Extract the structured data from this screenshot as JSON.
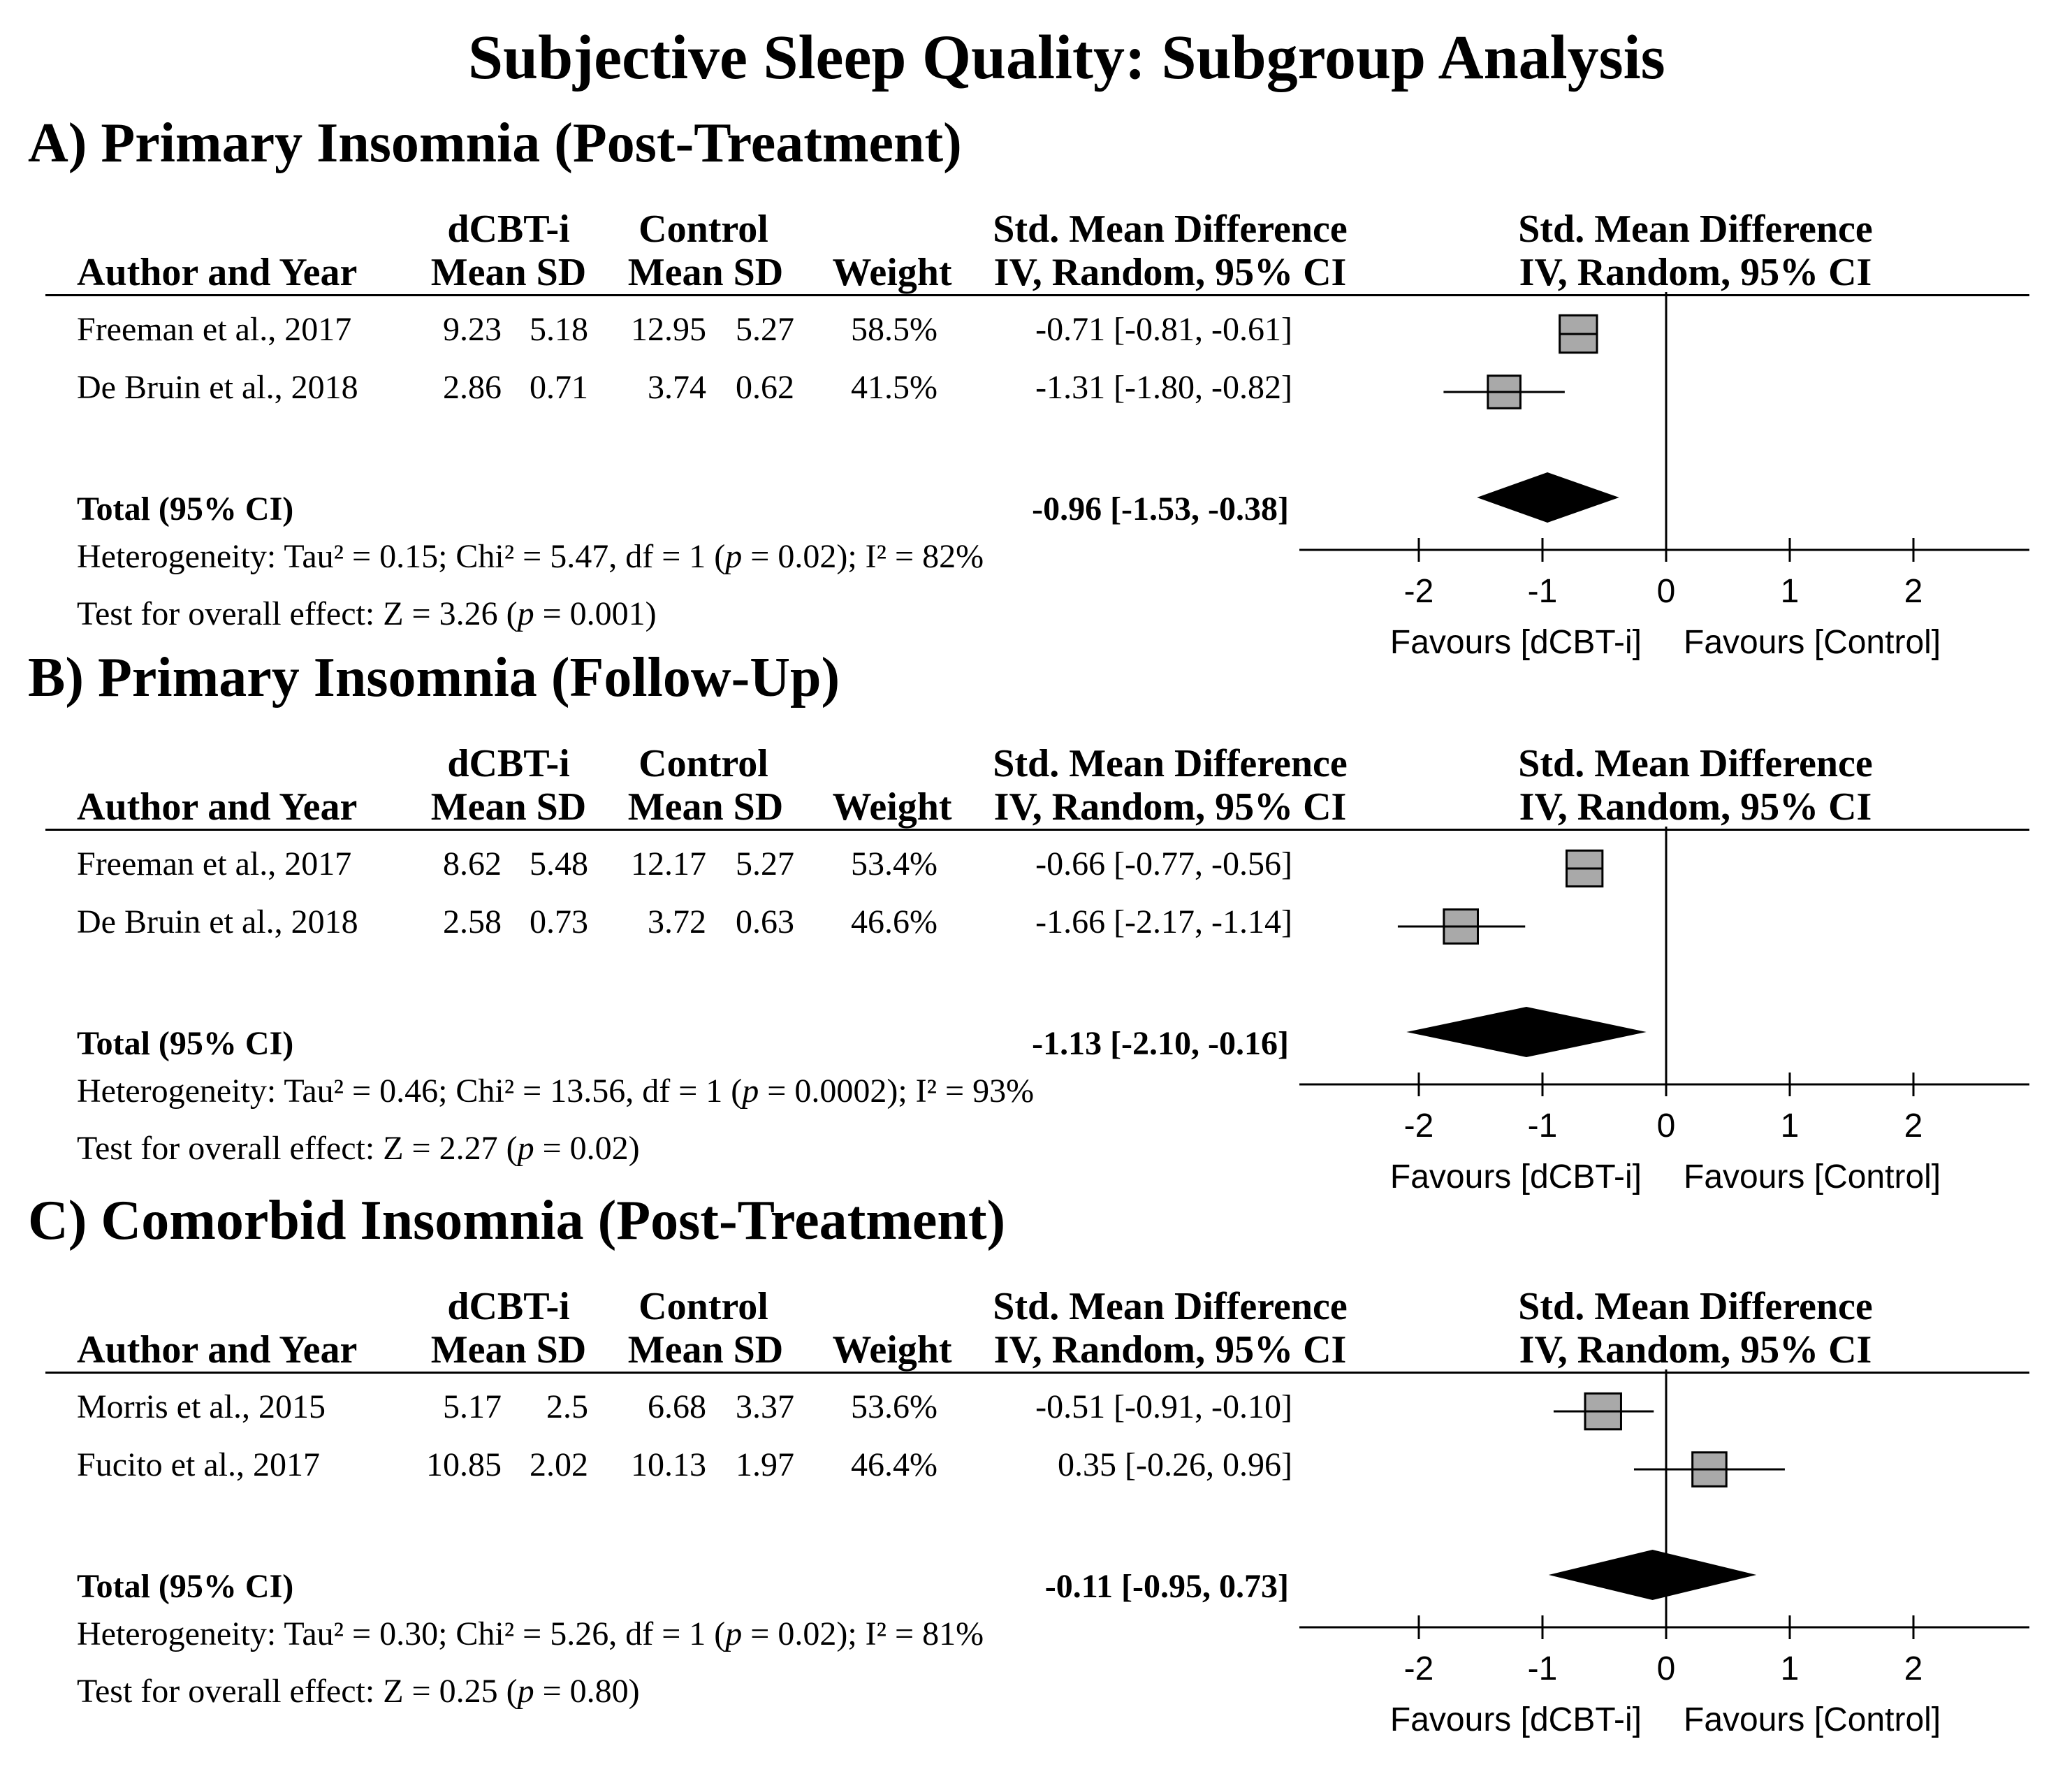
{
  "title": "Subjective Sleep Quality: Subgroup Analysis",
  "headers": {
    "author": "Author and Year",
    "dcbti": "dCBT-i",
    "control": "Control",
    "mean_sd": "Mean SD",
    "weight": "Weight",
    "smd": "Std. Mean Difference",
    "iv": "IV, Random, 95% CI"
  },
  "total_label": "Total (95% CI)",
  "favours_left": "Favours [dCBT-i]",
  "favours_right": "Favours [Control]",
  "ticks": [
    "-2",
    "-1",
    "0",
    "1",
    "2"
  ],
  "chart_data": [
    {
      "type": "forest",
      "title": "A) Primary Insomnia (Post-Treatment)",
      "xlim": [
        -2,
        2
      ],
      "studies": [
        {
          "author": "Freeman et al., 2017",
          "d_mean": "9.23",
          "d_sd": "5.18",
          "c_mean": "12.95",
          "c_sd": "5.27",
          "weight": "58.5%",
          "ci_text": "-0.71 [-0.81, -0.61]",
          "est": -0.71,
          "lo": -0.81,
          "hi": -0.61
        },
        {
          "author": "De Bruin et al., 2018",
          "d_mean": "2.86",
          "d_sd": "0.71",
          "c_mean": "3.74",
          "c_sd": "0.62",
          "weight": "41.5%",
          "ci_text": "-1.31 [-1.80, -0.82]",
          "est": -1.31,
          "lo": -1.8,
          "hi": -0.82
        }
      ],
      "total": {
        "ci_text": "-0.96 [-1.53, -0.38]",
        "est": -0.96,
        "lo": -1.53,
        "hi": -0.38
      },
      "heterogeneity": "Heterogeneity: Tau² = 0.15; Chi² = 5.47, df = 1 (p = 0.02); I² = 82%",
      "overall": "Test for overall effect: Z = 3.26 (p = 0.001)"
    },
    {
      "type": "forest",
      "title": "B) Primary Insomnia (Follow-Up)",
      "xlim": [
        -2,
        2
      ],
      "studies": [
        {
          "author": "Freeman et al., 2017",
          "d_mean": "8.62",
          "d_sd": "5.48",
          "c_mean": "12.17",
          "c_sd": "5.27",
          "weight": "53.4%",
          "ci_text": "-0.66 [-0.77, -0.56]",
          "est": -0.66,
          "lo": -0.77,
          "hi": -0.56
        },
        {
          "author": "De Bruin et al., 2018",
          "d_mean": "2.58",
          "d_sd": "0.73",
          "c_mean": "3.72",
          "c_sd": "0.63",
          "weight": "46.6%",
          "ci_text": "-1.66 [-2.17, -1.14]",
          "est": -1.66,
          "lo": -2.17,
          "hi": -1.14
        }
      ],
      "total": {
        "ci_text": "-1.13 [-2.10, -0.16]",
        "est": -1.13,
        "lo": -2.1,
        "hi": -0.16
      },
      "heterogeneity": "Heterogeneity: Tau² = 0.46; Chi² = 13.56, df = 1 (p = 0.0002); I² = 93%",
      "overall": "Test for overall effect: Z = 2.27 (p = 0.02)"
    },
    {
      "type": "forest",
      "title": "C) Comorbid Insomnia (Post-Treatment)",
      "xlim": [
        -2,
        2
      ],
      "studies": [
        {
          "author": "Morris et al., 2015",
          "d_mean": "5.17",
          "d_sd": "2.5",
          "c_mean": "6.68",
          "c_sd": "3.37",
          "weight": "53.6%",
          "ci_text": "-0.51 [-0.91, -0.10]",
          "est": -0.51,
          "lo": -0.91,
          "hi": -0.1
        },
        {
          "author": "Fucito et al., 2017",
          "d_mean": "10.85",
          "d_sd": "2.02",
          "c_mean": "10.13",
          "c_sd": "1.97",
          "weight": "46.4%",
          "ci_text": "0.35 [-0.26, 0.96]",
          "est": 0.35,
          "lo": -0.26,
          "hi": 0.96
        }
      ],
      "total": {
        "ci_text": "-0.11 [-0.95, 0.73]",
        "est": -0.11,
        "lo": -0.95,
        "hi": 0.73
      },
      "heterogeneity": "Heterogeneity: Tau² = 0.30; Chi² = 5.26, df = 1 (p = 0.02); I² = 81%",
      "overall": "Test for overall effect: Z = 0.25 (p = 0.80)"
    }
  ]
}
